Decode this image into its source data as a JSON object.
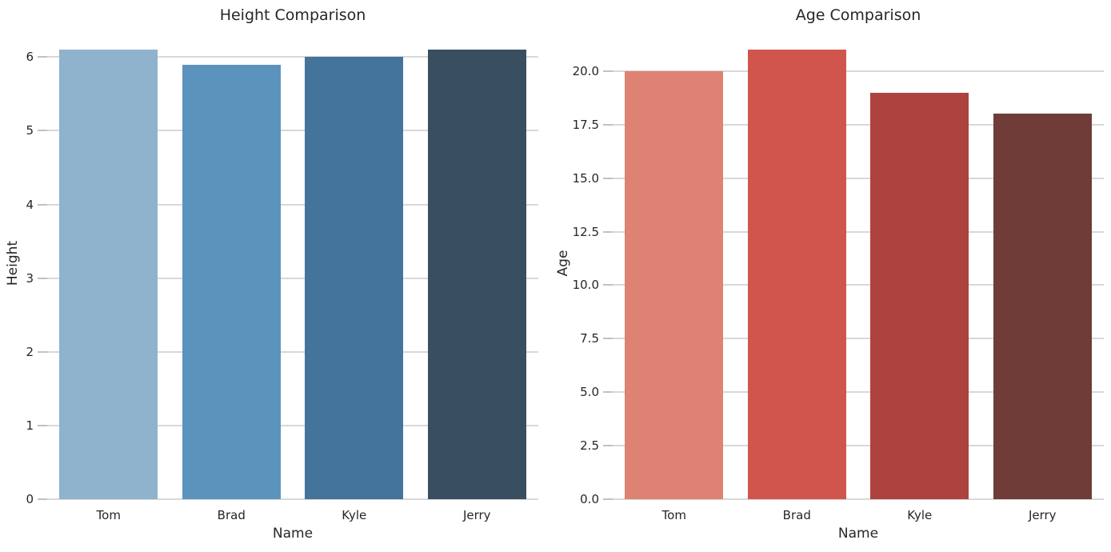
{
  "figure": {
    "background": "#ffffff",
    "text_color": "#262626",
    "grid_color": "#d8d8d8",
    "tick_mark_color": "#c2c2c2"
  },
  "chart_data": [
    {
      "type": "bar",
      "title": "Height Comparison",
      "xlabel": "Name",
      "ylabel": "Height",
      "categories": [
        "Tom",
        "Brad",
        "Kyle",
        "Jerry"
      ],
      "values": [
        6.1,
        5.9,
        6.0,
        6.1
      ],
      "bar_colors": [
        "#8fb2cd",
        "#5c93bd",
        "#44749a",
        "#3a4e61"
      ],
      "yticks": [
        0,
        1,
        2,
        3,
        4,
        5,
        6
      ],
      "ytick_labels": [
        "0",
        "1",
        "2",
        "3",
        "4",
        "5",
        "6"
      ],
      "ylim": [
        0,
        6.405
      ],
      "grid": "horizontal",
      "legend": "none",
      "bar_width_fraction": 0.8
    },
    {
      "type": "bar",
      "title": "Age Comparison",
      "xlabel": "Name",
      "ylabel": "Age",
      "categories": [
        "Tom",
        "Brad",
        "Kyle",
        "Jerry"
      ],
      "values": [
        20,
        21,
        19,
        18
      ],
      "bar_colors": [
        "#de8274",
        "#d0564d",
        "#ad423f",
        "#6f3c38"
      ],
      "yticks": [
        0,
        2.5,
        5,
        7.5,
        10,
        12.5,
        15,
        17.5,
        20
      ],
      "ytick_labels": [
        "0.0",
        "2.5",
        "5.0",
        "7.5",
        "10.0",
        "12.5",
        "15.0",
        "17.5",
        "20.0"
      ],
      "ylim": [
        0,
        22.05
      ],
      "grid": "horizontal",
      "legend": "none",
      "bar_width_fraction": 0.8
    }
  ]
}
